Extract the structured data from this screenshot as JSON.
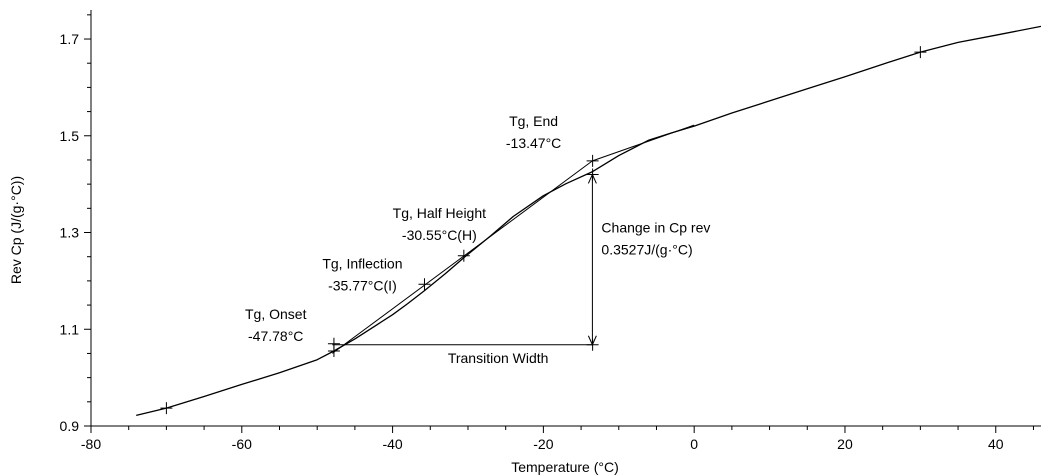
{
  "chart_data": {
    "type": "line",
    "title": "",
    "xlabel": "Temperature (°C)",
    "ylabel": "Rev Cp (J/(g·°C))",
    "xlim": [
      -80,
      46
    ],
    "ylim": [
      0.9,
      1.76
    ],
    "xticks": [
      -80,
      -60,
      -40,
      -20,
      0,
      20,
      40
    ],
    "xtick_labels": [
      "-80",
      "-60",
      "-40",
      "-20",
      "0",
      "20",
      "40"
    ],
    "yticks": [
      0.9,
      1.1,
      1.3,
      1.5,
      1.7
    ],
    "ytick_labels": [
      "0.9",
      "1.1",
      "1.3",
      "1.5",
      "1.7"
    ],
    "grid": false,
    "series": [
      {
        "x": [
          -74,
          -70,
          -65,
          -60,
          -55,
          -50,
          -47.78,
          -45,
          -42,
          -40,
          -38,
          -35.77,
          -33,
          -30.55,
          -27,
          -24,
          -20,
          -17,
          -13.47,
          -10,
          -6,
          -3,
          0,
          5,
          10,
          15,
          20,
          25,
          30,
          35,
          40,
          46
        ],
        "y": [
          0.922,
          0.937,
          0.961,
          0.986,
          1.01,
          1.037,
          1.055,
          1.08,
          1.11,
          1.13,
          1.153,
          1.18,
          1.215,
          1.248,
          1.293,
          1.333,
          1.376,
          1.401,
          1.426,
          1.459,
          1.491,
          1.506,
          1.52,
          1.547,
          1.572,
          1.597,
          1.622,
          1.648,
          1.673,
          1.693,
          1.708,
          1.726
        ]
      }
    ],
    "baselines": [
      {
        "x": [
          -48,
          -13.5
        ],
        "y": [
          1.05,
          1.448
        ]
      },
      {
        "x": [
          -13.5,
          0
        ],
        "y": [
          1.448,
          1.522
        ]
      },
      {
        "x": [
          -48,
          -13.5
        ],
        "y": [
          1.068,
          1.068
        ]
      },
      {
        "x": [
          -13.5,
          -13.5
        ],
        "y": [
          1.068,
          1.42
        ]
      }
    ],
    "markers": [
      {
        "x": -70,
        "y": 0.937
      },
      {
        "x": -47.78,
        "y": 1.07
      },
      {
        "x": -47.78,
        "y": 1.055
      },
      {
        "x": -35.77,
        "y": 1.193
      },
      {
        "x": -30.55,
        "y": 1.252
      },
      {
        "x": -13.47,
        "y": 1.448
      },
      {
        "x": -13.47,
        "y": 1.42
      },
      {
        "x": -13.47,
        "y": 1.068
      },
      {
        "x": 30,
        "y": 1.673
      }
    ],
    "annotations": [
      {
        "name": "onset",
        "lines": [
          "Tg, Onset",
          "-47.78°C"
        ],
        "x": -55.5,
        "y": 1.121,
        "anchor": "middle"
      },
      {
        "name": "inflection",
        "lines": [
          "Tg, Inflection",
          "-35.77°C(I)"
        ],
        "x": -44,
        "y": 1.226,
        "anchor": "middle"
      },
      {
        "name": "half-height",
        "lines": [
          "Tg, Half Height",
          "-30.55°C(H)"
        ],
        "x": -33.8,
        "y": 1.33,
        "anchor": "middle"
      },
      {
        "name": "end",
        "lines": [
          "Tg, End",
          "-13.47°C"
        ],
        "x": -21.3,
        "y": 1.52,
        "anchor": "middle"
      },
      {
        "name": "change-cp",
        "lines": [
          "Change in Cp rev",
          "0.3527J/(g·°C)"
        ],
        "x": -12.3,
        "y": 1.3,
        "anchor": "start"
      },
      {
        "name": "width",
        "lines": [
          "Transition Width"
        ],
        "x": -26,
        "y": 1.03,
        "anchor": "middle"
      }
    ]
  }
}
